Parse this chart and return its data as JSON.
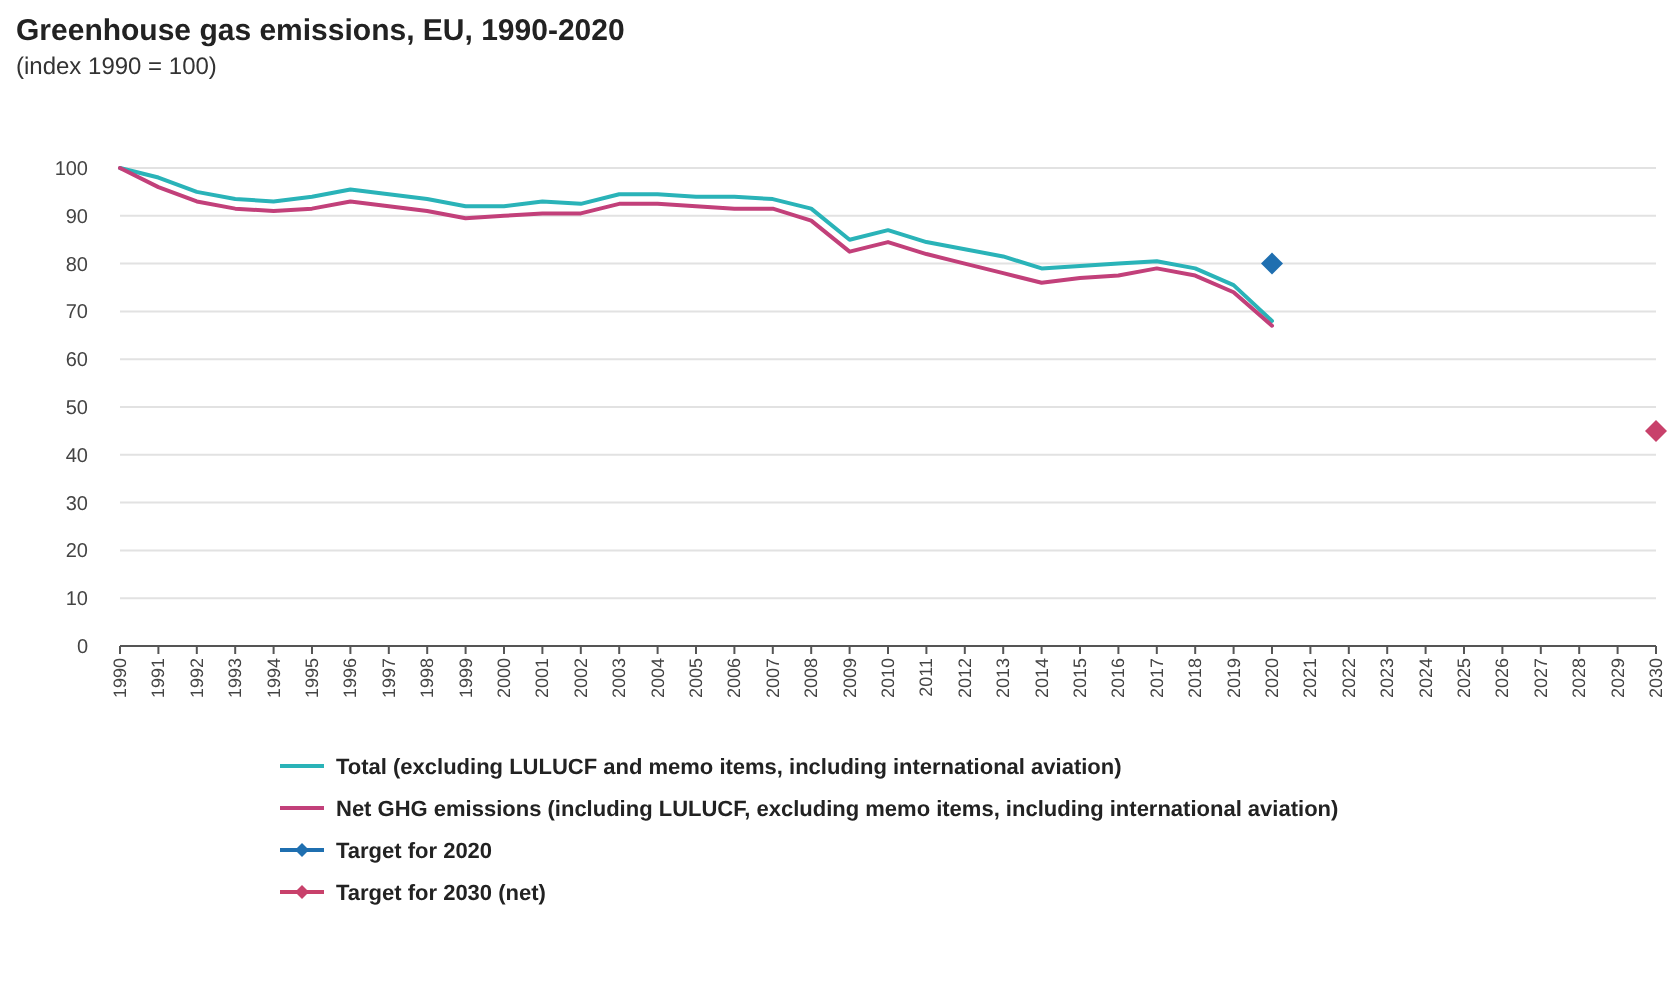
{
  "chart_data": {
    "type": "line",
    "title": "Greenhouse gas emissions, EU, 1990-2020",
    "subtitle": "(index 1990 = 100)",
    "categories": [
      "1990",
      "1991",
      "1992",
      "1993",
      "1994",
      "1995",
      "1996",
      "1997",
      "1998",
      "1999",
      "2000",
      "2001",
      "2002",
      "2003",
      "2004",
      "2005",
      "2006",
      "2007",
      "2008",
      "2009",
      "2010",
      "2011",
      "2012",
      "2013",
      "2014",
      "2015",
      "2016",
      "2017",
      "2018",
      "2019",
      "2020",
      "2021",
      "2022",
      "2023",
      "2024",
      "2025",
      "2026",
      "2027",
      "2028",
      "2029",
      "2030"
    ],
    "series": [
      {
        "name": "Total (excluding LULUCF and memo items, including international aviation)",
        "color": "#2ab3b8",
        "values": [
          100,
          98,
          95,
          93.5,
          93,
          94,
          95.5,
          94.5,
          93.5,
          92,
          92,
          93,
          92.5,
          94.5,
          94.5,
          94,
          94,
          93.5,
          91.5,
          85,
          87,
          84.5,
          83,
          81.5,
          79,
          79.5,
          80,
          80.5,
          79,
          75.5,
          68,
          null,
          null,
          null,
          null,
          null,
          null,
          null,
          null,
          null,
          null
        ]
      },
      {
        "name": "Net GHG emissions (including LULUCF, excluding memo items, including international aviation)",
        "color": "#c2407a",
        "values": [
          100,
          96,
          93,
          91.5,
          91,
          91.5,
          93,
          92,
          91,
          89.5,
          90,
          90.5,
          90.5,
          92.5,
          92.5,
          92,
          91.5,
          91.5,
          89,
          82.5,
          84.5,
          82,
          80,
          78,
          76,
          77,
          77.5,
          79,
          77.5,
          74,
          67,
          null,
          null,
          null,
          null,
          null,
          null,
          null,
          null,
          null,
          null
        ]
      },
      {
        "name": "Target for 2020",
        "type": "scatter",
        "marker": "diamond",
        "color": "#1f6fb0",
        "values": [
          null,
          null,
          null,
          null,
          null,
          null,
          null,
          null,
          null,
          null,
          null,
          null,
          null,
          null,
          null,
          null,
          null,
          null,
          null,
          null,
          null,
          null,
          null,
          null,
          null,
          null,
          null,
          null,
          null,
          null,
          80,
          null,
          null,
          null,
          null,
          null,
          null,
          null,
          null,
          null,
          null
        ]
      },
      {
        "name": "Target for 2030 (net)",
        "type": "scatter",
        "marker": "diamond",
        "color": "#c8416b",
        "values": [
          null,
          null,
          null,
          null,
          null,
          null,
          null,
          null,
          null,
          null,
          null,
          null,
          null,
          null,
          null,
          null,
          null,
          null,
          null,
          null,
          null,
          null,
          null,
          null,
          null,
          null,
          null,
          null,
          null,
          null,
          null,
          null,
          null,
          null,
          null,
          null,
          null,
          null,
          null,
          null,
          45
        ]
      }
    ],
    "ylim": [
      0,
      100
    ],
    "yticks": [
      0,
      10,
      20,
      30,
      40,
      50,
      60,
      70,
      80,
      90,
      100
    ],
    "grid": "y",
    "legend": "bottom",
    "marker": "none",
    "line_style": "solid"
  }
}
